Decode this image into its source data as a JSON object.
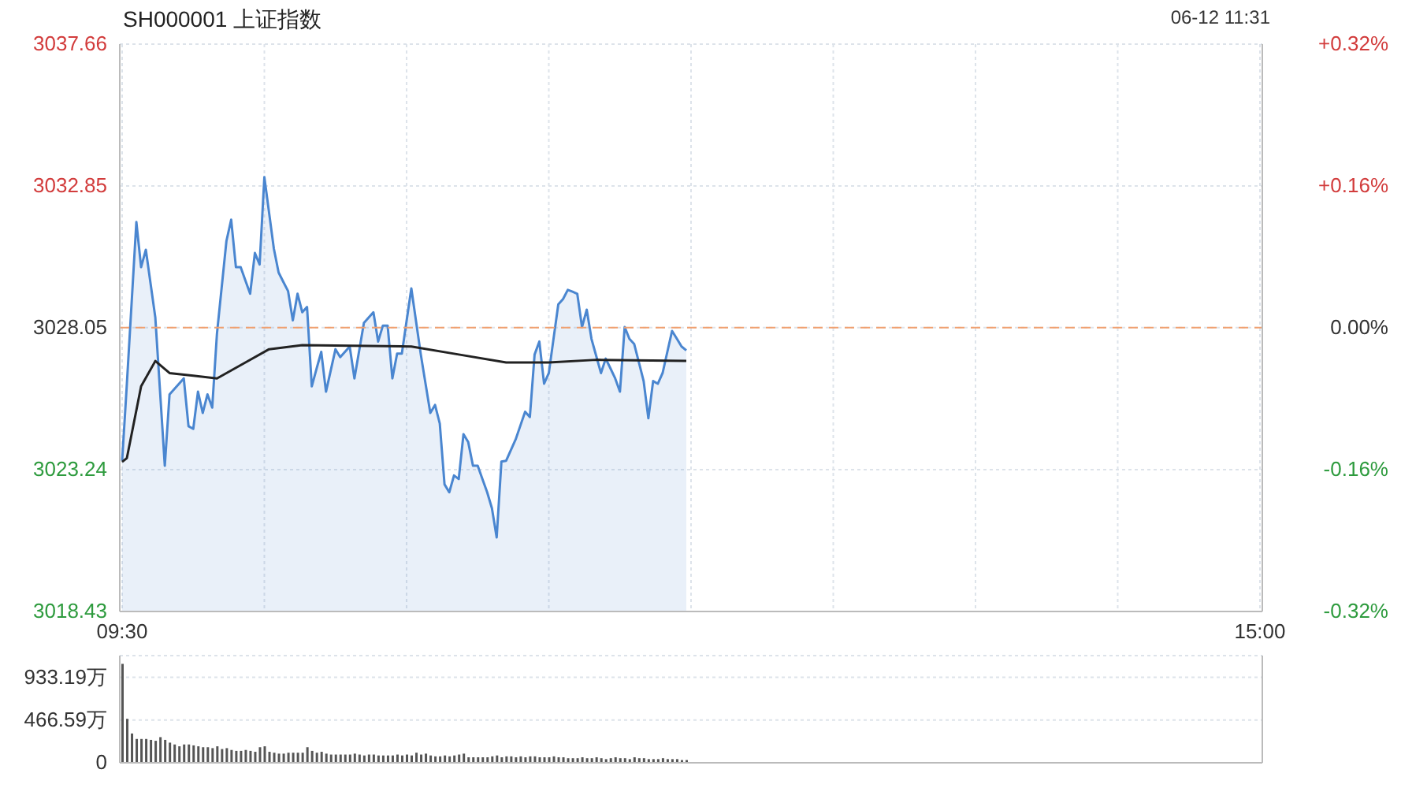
{
  "chart_data": [
    {
      "type": "area",
      "title": "SH000001 上证指数",
      "annotations": [
        "06-12 11:31"
      ],
      "marker": "none",
      "line_style": "solid",
      "grid": true,
      "categories": [
        "09:30",
        null,
        null,
        null,
        null,
        null,
        null,
        null,
        null,
        null,
        null,
        null,
        null,
        null,
        null,
        null,
        null,
        null,
        null,
        null,
        null,
        null,
        null,
        null,
        null,
        null,
        null,
        null,
        null,
        null,
        null,
        null,
        null,
        null,
        null,
        null,
        null,
        null,
        null,
        null,
        null,
        null,
        null,
        null,
        null,
        null,
        null,
        null,
        null,
        null,
        null,
        null,
        null,
        null,
        null,
        null,
        null,
        null,
        null,
        null,
        null,
        null,
        null,
        null,
        null,
        null,
        null,
        null,
        null,
        null,
        null,
        null,
        null,
        null,
        null,
        null,
        null,
        null,
        null,
        null,
        null,
        null,
        null,
        null,
        null,
        null,
        null,
        null,
        null,
        null,
        null,
        null,
        null,
        null,
        null,
        null,
        null,
        null,
        null,
        null,
        null,
        null,
        null,
        null,
        null,
        null,
        null,
        null,
        null,
        null,
        null,
        null,
        null,
        null,
        null,
        null,
        null,
        null,
        null,
        null,
        null,
        null,
        null,
        null,
        null,
        null,
        null,
        null,
        null,
        null,
        null,
        null,
        null,
        null,
        null,
        null,
        null,
        null,
        null,
        null,
        null,
        null,
        null,
        null,
        null,
        null,
        null,
        null,
        null,
        null,
        null,
        null,
        null,
        null,
        null,
        null,
        null,
        null,
        null,
        null,
        null,
        null,
        null,
        null,
        null,
        null,
        null,
        null,
        null,
        null,
        null,
        null,
        null,
        null,
        null,
        null,
        null,
        null,
        null,
        null,
        null,
        null,
        null,
        null,
        null,
        null,
        null,
        null,
        null,
        null,
        null,
        null,
        null,
        null,
        null,
        null,
        null,
        null,
        null,
        null,
        null,
        null,
        null,
        null,
        null,
        null,
        null,
        null,
        null,
        null,
        null,
        null,
        null,
        null,
        null,
        null,
        null,
        null,
        null,
        null,
        null,
        null,
        null,
        null,
        null,
        null,
        null,
        null,
        null,
        null,
        null,
        null,
        null,
        null,
        null,
        null,
        null,
        null,
        null,
        null,
        "15:00"
      ],
      "ylim": [
        3018.43,
        3037.66
      ],
      "yticks": [
        3018.43,
        3023.24,
        3028.05,
        3032.85,
        3037.66
      ],
      "y2lim": [
        -0.32,
        0.32
      ],
      "y2ticks": [
        {
          "value": -0.32,
          "label": "-0.32%"
        },
        {
          "value": -0.16,
          "label": "-0.16%"
        },
        {
          "value": 0,
          "label": "0.00%"
        },
        {
          "value": 0.16,
          "label": "+0.16%"
        },
        {
          "value": 0.32,
          "label": "+0.32%"
        }
      ],
      "ref_lines": [
        {
          "axis": "y",
          "value": 3028.05,
          "color": "#f0a070",
          "line_style": "dashed"
        }
      ],
      "series": [
        {
          "color": "#4a86d0",
          "values": [
            3023.54,
            3026.15,
            3028.89,
            3031.63,
            3030.1,
            3030.69,
            3029.54,
            3028.39,
            3025.88,
            3023.37,
            3025.79,
            3025.97,
            3026.15,
            3026.33,
            3024.71,
            3024.62,
            3025.88,
            3025.16,
            3025.79,
            3025.34,
            3027.85,
            3029.42,
            3030.99,
            3031.71,
            3030.1,
            3030.1,
            3029.65,
            3029.2,
            3030.58,
            3030.19,
            3033.15,
            3031.94,
            3030.73,
            3029.92,
            3029.6,
            3029.29,
            3028.3,
            3029.2,
            3028.57,
            3028.75,
            3026.06,
            3026.65,
            3027.23,
            3025.88,
            3026.6,
            3027.32,
            3027.05,
            3027.23,
            3027.41,
            3026.33,
            3027.27,
            3028.21,
            3028.39,
            3028.57,
            3027.58,
            3028.12,
            3028.12,
            3026.33,
            3027.17,
            3027.17,
            3028.28,
            3029.38,
            3028.26,
            3027.14,
            3026.15,
            3025.16,
            3025.43,
            3024.8,
            3022.74,
            3022.47,
            3023.04,
            3022.92,
            3024.44,
            3024.17,
            3023.37,
            3023.37,
            3022.92,
            3022.47,
            3021.93,
            3020.94,
            3023.51,
            3023.54,
            3023.9,
            3024.26,
            3024.73,
            3025.2,
            3025.02,
            3027.14,
            3027.58,
            3026.15,
            3026.51,
            3027.68,
            3028.84,
            3029.02,
            3029.33,
            3029.27,
            3029.2,
            3028.07,
            3028.66,
            3027.67,
            3027.09,
            3026.51,
            3027.0,
            3026.67,
            3026.33,
            3025.88,
            3028.07,
            3027.67,
            3027.5,
            3026.87,
            3026.24,
            3024.98,
            3026.24,
            3026.15,
            3026.51,
            3027.23,
            3027.94,
            3027.68,
            3027.41,
            3027.28,
            null,
            null,
            null,
            null,
            null,
            null,
            null,
            null,
            null,
            null,
            null,
            null,
            null,
            null,
            null,
            null,
            null,
            null,
            null,
            null,
            null,
            null,
            null,
            null,
            null,
            null,
            null,
            null,
            null,
            null,
            null,
            null,
            null,
            null,
            null,
            null,
            null,
            null,
            null,
            null,
            null,
            null,
            null,
            null,
            null,
            null,
            null,
            null,
            null,
            null,
            null,
            null,
            null,
            null,
            null,
            null,
            null,
            null,
            null,
            null,
            null,
            null,
            null,
            null,
            null,
            null,
            null,
            null,
            null,
            null,
            null,
            null,
            null,
            null,
            null,
            null,
            null,
            null,
            null,
            null,
            null,
            null,
            null,
            null,
            null,
            null,
            null,
            null,
            null,
            null,
            null,
            null,
            null,
            null,
            null,
            null,
            null,
            null,
            null,
            null,
            null,
            null,
            null,
            null,
            null,
            null,
            null,
            null,
            null,
            null,
            null,
            null,
            null,
            null,
            null,
            null,
            null,
            null,
            null,
            null,
            null
          ]
        },
        {
          "type": "line",
          "color": "#222222",
          "values": [
            3023.5,
            3023.63,
            null,
            null,
            3026.06,
            null,
            null,
            3026.92,
            null,
            null,
            3026.51,
            null,
            null,
            null,
            null,
            3026.42,
            null,
            null,
            null,
            null,
            3026.33,
            null,
            null,
            null,
            null,
            null,
            3026.87,
            null,
            null,
            null,
            null,
            3027.32,
            null,
            null,
            null,
            null,
            null,
            null,
            3027.46,
            null,
            null,
            null,
            null,
            null,
            null,
            null,
            null,
            null,
            null,
            null,
            null,
            null,
            null,
            null,
            null,
            null,
            null,
            null,
            null,
            null,
            null,
            3027.41,
            null,
            null,
            null,
            null,
            null,
            null,
            null,
            null,
            null,
            3027.14,
            null,
            null,
            null,
            null,
            null,
            null,
            null,
            null,
            null,
            3026.87,
            null,
            null,
            null,
            null,
            null,
            null,
            null,
            null,
            3026.87,
            null,
            null,
            null,
            null,
            null,
            null,
            null,
            null,
            null,
            3026.96,
            null,
            null,
            null,
            null,
            null,
            null,
            null,
            null,
            null,
            null,
            null,
            null,
            null,
            null,
            null,
            null,
            null,
            null,
            3026.92,
            null,
            null,
            null,
            null,
            null,
            null,
            null,
            null,
            null,
            null,
            null,
            null,
            null,
            null,
            null,
            null,
            null,
            null,
            null,
            null,
            null,
            null,
            null,
            null,
            null,
            null,
            null,
            null,
            null,
            null,
            null,
            null,
            null,
            null,
            null,
            null,
            null,
            null,
            null,
            null,
            null,
            null,
            null,
            null,
            null,
            null,
            null,
            null,
            null,
            null,
            null,
            null,
            null,
            null,
            null,
            null,
            null,
            null,
            null,
            null,
            null,
            null,
            null,
            null,
            null,
            null,
            null,
            null,
            null,
            null,
            null,
            null,
            null,
            null,
            null,
            null,
            null,
            null,
            null,
            null,
            null,
            null,
            null,
            null,
            null,
            null,
            null,
            null,
            null,
            null,
            null,
            null,
            null,
            null,
            null,
            null,
            null,
            null,
            null,
            null,
            null,
            null,
            null,
            null,
            null,
            null,
            null,
            null,
            null,
            null,
            null,
            null,
            null,
            null,
            null,
            null,
            null,
            null,
            null,
            null,
            null
          ]
        }
      ]
    },
    {
      "type": "bar",
      "grid": "y",
      "tick_labels": "y",
      "categories": [
        null,
        null,
        null,
        null,
        null,
        null,
        null,
        null,
        null,
        null,
        null,
        null,
        null,
        null,
        null,
        null,
        null,
        null,
        null,
        null,
        null,
        null,
        null,
        null,
        null,
        null,
        null,
        null,
        null,
        null,
        null,
        null,
        null,
        null,
        null,
        null,
        null,
        null,
        null,
        null,
        null,
        null,
        null,
        null,
        null,
        null,
        null,
        null,
        null,
        null,
        null,
        null,
        null,
        null,
        null,
        null,
        null,
        null,
        null,
        null,
        null,
        null,
        null,
        null,
        null,
        null,
        null,
        null,
        null,
        null,
        null,
        null,
        null,
        null,
        null,
        null,
        null,
        null,
        null,
        null,
        null,
        null,
        null,
        null,
        null,
        null,
        null,
        null,
        null,
        null,
        null,
        null,
        null,
        null,
        null,
        null,
        null,
        null,
        null,
        null,
        null,
        null,
        null,
        null,
        null,
        null,
        null,
        null,
        null,
        null,
        null,
        null,
        null,
        null,
        null,
        null,
        null,
        null,
        null,
        null,
        null,
        null,
        null,
        null,
        null,
        null,
        null,
        null,
        null,
        null,
        null,
        null,
        null,
        null,
        null,
        null,
        null,
        null,
        null,
        null,
        null,
        null,
        null,
        null,
        null,
        null,
        null,
        null,
        null,
        null,
        null,
        null,
        null,
        null,
        null,
        null,
        null,
        null,
        null,
        null,
        null,
        null,
        null,
        null,
        null,
        null,
        null,
        null,
        null,
        null,
        null,
        null,
        null,
        null,
        null,
        null,
        null,
        null,
        null,
        null,
        null,
        null,
        null,
        null,
        null,
        null,
        null,
        null,
        null,
        null,
        null,
        null,
        null,
        null,
        null,
        null,
        null,
        null,
        null,
        null,
        null,
        null,
        null,
        null,
        null,
        null,
        null,
        null,
        null,
        null,
        null,
        null,
        null,
        null,
        null,
        null,
        null,
        null,
        null,
        null,
        null,
        null,
        null,
        null,
        null,
        null,
        null,
        null,
        null,
        null,
        null,
        null,
        null,
        null,
        null,
        null,
        null,
        null,
        null,
        null,
        null
      ],
      "ylim": [
        0,
        1170
      ],
      "yticks": [
        0,
        {
          "value": 466.59,
          "label": "466.59万"
        },
        {
          "value": 933.19,
          "label": "933.19万"
        }
      ],
      "series": [
        {
          "color": "#555555",
          "values": [
            1080,
            480,
            320,
            260,
            260,
            260,
            250,
            240,
            280,
            250,
            220,
            200,
            180,
            200,
            200,
            190,
            180,
            170,
            170,
            160,
            180,
            150,
            160,
            140,
            130,
            130,
            140,
            130,
            120,
            170,
            180,
            120,
            110,
            100,
            100,
            110,
            110,
            110,
            110,
            170,
            130,
            110,
            120,
            100,
            90,
            90,
            90,
            90,
            90,
            100,
            90,
            80,
            90,
            90,
            80,
            80,
            80,
            80,
            90,
            80,
            90,
            80,
            110,
            90,
            100,
            80,
            70,
            70,
            80,
            70,
            80,
            90,
            100,
            60,
            60,
            60,
            60,
            60,
            70,
            80,
            60,
            70,
            70,
            60,
            70,
            60,
            70,
            70,
            60,
            60,
            60,
            70,
            60,
            60,
            50,
            50,
            50,
            60,
            50,
            50,
            60,
            50,
            40,
            50,
            60,
            50,
            50,
            40,
            60,
            50,
            50,
            40,
            40,
            40,
            50,
            40,
            40,
            40,
            30,
            30,
            null,
            null,
            null,
            null,
            null,
            null,
            null,
            null,
            null,
            null,
            null,
            null,
            null,
            null,
            null,
            null,
            null,
            null,
            null,
            null,
            null,
            null,
            null,
            null,
            null,
            null,
            null,
            null,
            null,
            null,
            null,
            null,
            null,
            null,
            null,
            null,
            null,
            null,
            null,
            null,
            null,
            null,
            null,
            null,
            null,
            null,
            null,
            null,
            null,
            null,
            null,
            null,
            null,
            null,
            null,
            null,
            null,
            null,
            null,
            null,
            null,
            null,
            null,
            null,
            null,
            null,
            null,
            null,
            null,
            null,
            null,
            null,
            null,
            null,
            null,
            null,
            null,
            null,
            null,
            null,
            null,
            null,
            null,
            null,
            null,
            null,
            null,
            null,
            null,
            null,
            null,
            null,
            null,
            null,
            null,
            null,
            null,
            null,
            null,
            null,
            null,
            null,
            null,
            null,
            null,
            null,
            null,
            null,
            null,
            null,
            null,
            null,
            null,
            null,
            null,
            null,
            null,
            null,
            null,
            null,
            null
          ]
        }
      ]
    }
  ]
}
